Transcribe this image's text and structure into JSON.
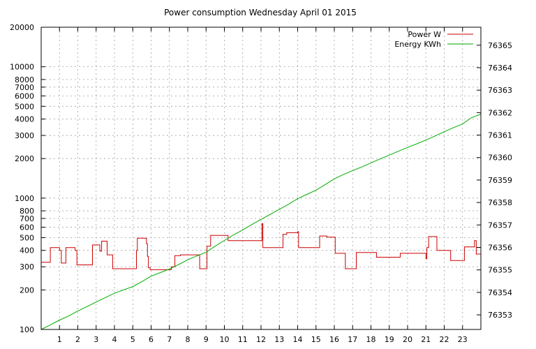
{
  "chart_data": {
    "type": "line",
    "title": "Power consumption Wednesday April 01 2015",
    "grid": true,
    "legend_position": "top-right",
    "x_axis": {
      "ticks": [
        1,
        2,
        3,
        4,
        5,
        6,
        7,
        8,
        9,
        10,
        11,
        12,
        13,
        14,
        15,
        16,
        17,
        18,
        19,
        20,
        21,
        22,
        23
      ],
      "range": [
        0,
        24
      ]
    },
    "y_axis_left": {
      "scale": "log",
      "range": [
        100,
        20000
      ],
      "ticks": [
        100,
        200,
        300,
        400,
        500,
        600,
        700,
        800,
        1000,
        2000,
        3000,
        4000,
        5000,
        6000,
        7000,
        8000,
        10000,
        20000
      ]
    },
    "y_axis_right": {
      "scale": "linear",
      "range": [
        76352.35,
        76365.8
      ],
      "ticks": [
        76353,
        76354,
        76355,
        76356,
        76357,
        76358,
        76359,
        76360,
        76361,
        76362,
        76363,
        76364,
        76365
      ]
    },
    "series": [
      {
        "name": "Power W",
        "color": "#cc0000",
        "axis": "left",
        "shape": "step",
        "points": [
          [
            0,
            325
          ],
          [
            0.5,
            325
          ],
          [
            0.5,
            420
          ],
          [
            1.0,
            420
          ],
          [
            1.0,
            400
          ],
          [
            1.1,
            400
          ],
          [
            1.1,
            320
          ],
          [
            1.35,
            320
          ],
          [
            1.35,
            420
          ],
          [
            1.85,
            420
          ],
          [
            1.85,
            400
          ],
          [
            1.95,
            400
          ],
          [
            1.95,
            310
          ],
          [
            2.8,
            310
          ],
          [
            2.8,
            440
          ],
          [
            3.2,
            440
          ],
          [
            3.2,
            395
          ],
          [
            3.3,
            395
          ],
          [
            3.3,
            470
          ],
          [
            3.6,
            470
          ],
          [
            3.6,
            370
          ],
          [
            3.9,
            370
          ],
          [
            3.9,
            290
          ],
          [
            5.2,
            290
          ],
          [
            5.2,
            400
          ],
          [
            5.25,
            400
          ],
          [
            5.25,
            495
          ],
          [
            5.75,
            495
          ],
          [
            5.75,
            450
          ],
          [
            5.8,
            450
          ],
          [
            5.8,
            360
          ],
          [
            5.85,
            360
          ],
          [
            5.85,
            295
          ],
          [
            5.95,
            295
          ],
          [
            5.95,
            285
          ],
          [
            7.1,
            285
          ],
          [
            7.1,
            300
          ],
          [
            7.3,
            300
          ],
          [
            7.3,
            365
          ],
          [
            7.6,
            365
          ],
          [
            7.6,
            370
          ],
          [
            8.65,
            370
          ],
          [
            8.65,
            290
          ],
          [
            9.05,
            290
          ],
          [
            9.05,
            430
          ],
          [
            9.25,
            430
          ],
          [
            9.25,
            520
          ],
          [
            10.2,
            520
          ],
          [
            10.2,
            475
          ],
          [
            12.05,
            475
          ],
          [
            12.05,
            640
          ],
          [
            12.1,
            640
          ],
          [
            12.1,
            420
          ],
          [
            13.2,
            420
          ],
          [
            13.2,
            530
          ],
          [
            13.4,
            530
          ],
          [
            13.4,
            545
          ],
          [
            14.0,
            545
          ],
          [
            14.0,
            555
          ],
          [
            14.05,
            555
          ],
          [
            14.05,
            420
          ],
          [
            15.2,
            420
          ],
          [
            15.2,
            515
          ],
          [
            15.6,
            515
          ],
          [
            15.6,
            505
          ],
          [
            16.05,
            505
          ],
          [
            16.05,
            380
          ],
          [
            16.6,
            380
          ],
          [
            16.6,
            290
          ],
          [
            17.2,
            290
          ],
          [
            17.2,
            385
          ],
          [
            18.3,
            385
          ],
          [
            18.3,
            355
          ],
          [
            19.6,
            355
          ],
          [
            19.6,
            380
          ],
          [
            21.0,
            380
          ],
          [
            21.0,
            345
          ],
          [
            21.05,
            345
          ],
          [
            21.05,
            420
          ],
          [
            21.15,
            420
          ],
          [
            21.15,
            510
          ],
          [
            21.6,
            510
          ],
          [
            21.6,
            400
          ],
          [
            22.35,
            400
          ],
          [
            22.35,
            335
          ],
          [
            23.1,
            335
          ],
          [
            23.1,
            425
          ],
          [
            23.65,
            425
          ],
          [
            23.65,
            475
          ],
          [
            23.75,
            475
          ],
          [
            23.75,
            375
          ],
          [
            24,
            375
          ]
        ]
      },
      {
        "name": "Energy KWh",
        "color": "#00aa00",
        "axis": "right",
        "shape": "line",
        "points": [
          [
            0,
            76352.35
          ],
          [
            0.5,
            76352.55
          ],
          [
            1,
            76352.77
          ],
          [
            1.5,
            76352.95
          ],
          [
            2,
            76353.17
          ],
          [
            2.5,
            76353.37
          ],
          [
            3,
            76353.57
          ],
          [
            3.5,
            76353.77
          ],
          [
            4,
            76353.96
          ],
          [
            4.5,
            76354.11
          ],
          [
            5,
            76354.26
          ],
          [
            5.5,
            76354.48
          ],
          [
            6,
            76354.72
          ],
          [
            6.5,
            76354.88
          ],
          [
            7,
            76355.04
          ],
          [
            7.5,
            76355.24
          ],
          [
            8,
            76355.45
          ],
          [
            8.5,
            76355.62
          ],
          [
            9,
            76355.79
          ],
          [
            9.5,
            76356.06
          ],
          [
            10,
            76356.31
          ],
          [
            10.5,
            76356.56
          ],
          [
            11,
            76356.78
          ],
          [
            11.5,
            76357.02
          ],
          [
            12,
            76357.25
          ],
          [
            12.5,
            76357.47
          ],
          [
            13,
            76357.7
          ],
          [
            13.5,
            76357.92
          ],
          [
            14,
            76358.17
          ],
          [
            14.5,
            76358.36
          ],
          [
            15,
            76358.55
          ],
          [
            15.5,
            76358.8
          ],
          [
            16,
            76359.05
          ],
          [
            16.5,
            76359.25
          ],
          [
            17,
            76359.42
          ],
          [
            17.5,
            76359.58
          ],
          [
            18,
            76359.76
          ],
          [
            18.5,
            76359.94
          ],
          [
            19,
            76360.11
          ],
          [
            19.5,
            76360.28
          ],
          [
            20,
            76360.45
          ],
          [
            20.5,
            76360.61
          ],
          [
            21,
            76360.78
          ],
          [
            21.5,
            76360.96
          ],
          [
            22,
            76361.15
          ],
          [
            22.5,
            76361.33
          ],
          [
            23,
            76361.5
          ],
          [
            23.5,
            76361.78
          ],
          [
            24,
            76361.93
          ]
        ]
      }
    ]
  }
}
